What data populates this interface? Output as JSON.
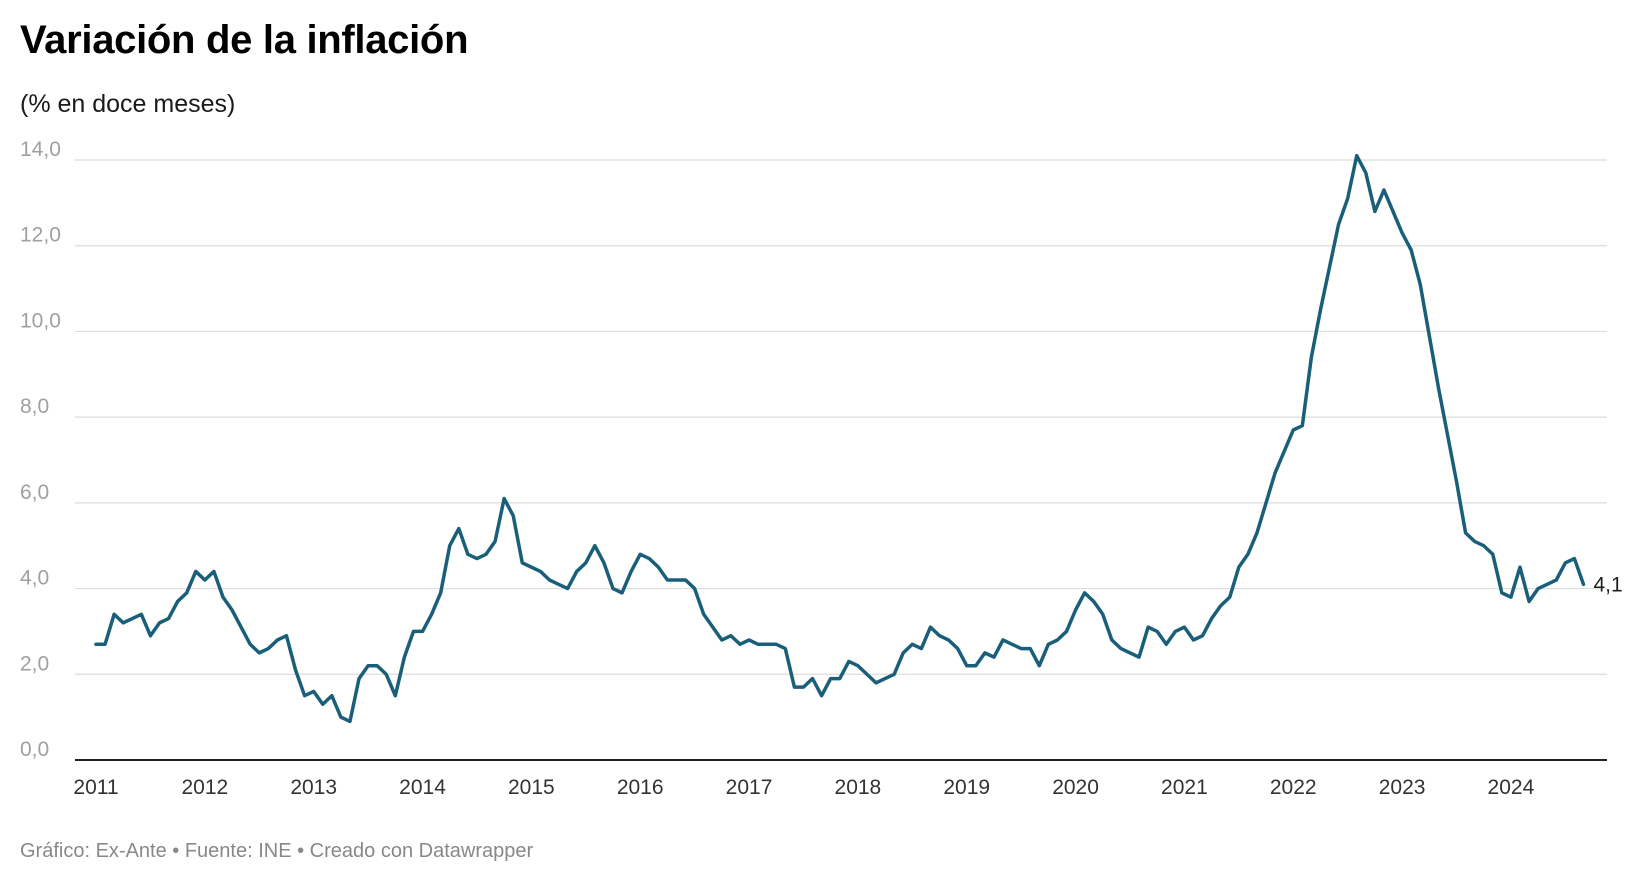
{
  "chart_data": {
    "type": "line",
    "title": "Variación de la inflación",
    "subtitle": "(% en doce meses)",
    "footer": "Gráfico: Ex-Ante • Fuente: INE • Creado con Datawrapper",
    "ylim": [
      0,
      14
    ],
    "yticks": [
      0,
      2,
      4,
      6,
      8,
      10,
      12,
      14
    ],
    "ytick_labels": [
      "0,0",
      "2,0",
      "4,0",
      "6,0",
      "8,0",
      "10,0",
      "12,0",
      "14,0"
    ],
    "xticks": [
      "2011",
      "2012",
      "2013",
      "2014",
      "2015",
      "2016",
      "2017",
      "2018",
      "2019",
      "2020",
      "2021",
      "2022",
      "2023",
      "2024"
    ],
    "x_start": "2011-01",
    "x_end": "2024-09",
    "grid": true,
    "line_color": "#1a5f7a",
    "end_label": "4,1",
    "series": [
      {
        "values": [
          2.7,
          2.7,
          3.4,
          3.2,
          3.3,
          3.4,
          2.9,
          3.2,
          3.3,
          3.7,
          3.9,
          4.4,
          4.2,
          4.4,
          3.8,
          3.5,
          3.1,
          2.7,
          2.5,
          2.6,
          2.8,
          2.9,
          2.1,
          1.5,
          1.6,
          1.3,
          1.5,
          1.0,
          0.9,
          1.9,
          2.2,
          2.2,
          2.0,
          1.5,
          2.4,
          3.0,
          3.0,
          3.4,
          3.9,
          5.0,
          5.4,
          4.8,
          4.7,
          4.8,
          5.1,
          6.1,
          5.7,
          4.6,
          4.5,
          4.4,
          4.2,
          4.1,
          4.0,
          4.4,
          4.6,
          5.0,
          4.6,
          4.0,
          3.9,
          4.4,
          4.8,
          4.7,
          4.5,
          4.2,
          4.2,
          4.2,
          4.0,
          3.4,
          3.1,
          2.8,
          2.9,
          2.7,
          2.8,
          2.7,
          2.7,
          2.7,
          2.6,
          1.7,
          1.7,
          1.9,
          1.5,
          1.9,
          1.9,
          2.3,
          2.2,
          2.0,
          1.8,
          1.9,
          2.0,
          2.5,
          2.7,
          2.6,
          3.1,
          2.9,
          2.8,
          2.6,
          2.2,
          2.2,
          2.5,
          2.4,
          2.8,
          2.7,
          2.6,
          2.6,
          2.2,
          2.7,
          2.8,
          3.0,
          3.5,
          3.9,
          3.7,
          3.4,
          2.8,
          2.6,
          2.5,
          2.4,
          3.1,
          3.0,
          2.7,
          3.0,
          3.1,
          2.8,
          2.9,
          3.3,
          3.6,
          3.8,
          4.5,
          4.8,
          5.3,
          6.0,
          6.7,
          7.2,
          7.7,
          7.8,
          9.4,
          10.5,
          11.5,
          12.5,
          13.1,
          14.1,
          13.7,
          12.8,
          13.3,
          12.8,
          12.3,
          11.9,
          11.1,
          9.9,
          8.7,
          7.6,
          6.5,
          5.3,
          5.1,
          5.0,
          4.8,
          3.9,
          3.8,
          4.5,
          3.7,
          4.0,
          4.1,
          4.2,
          4.6,
          4.7,
          4.1
        ]
      }
    ]
  }
}
